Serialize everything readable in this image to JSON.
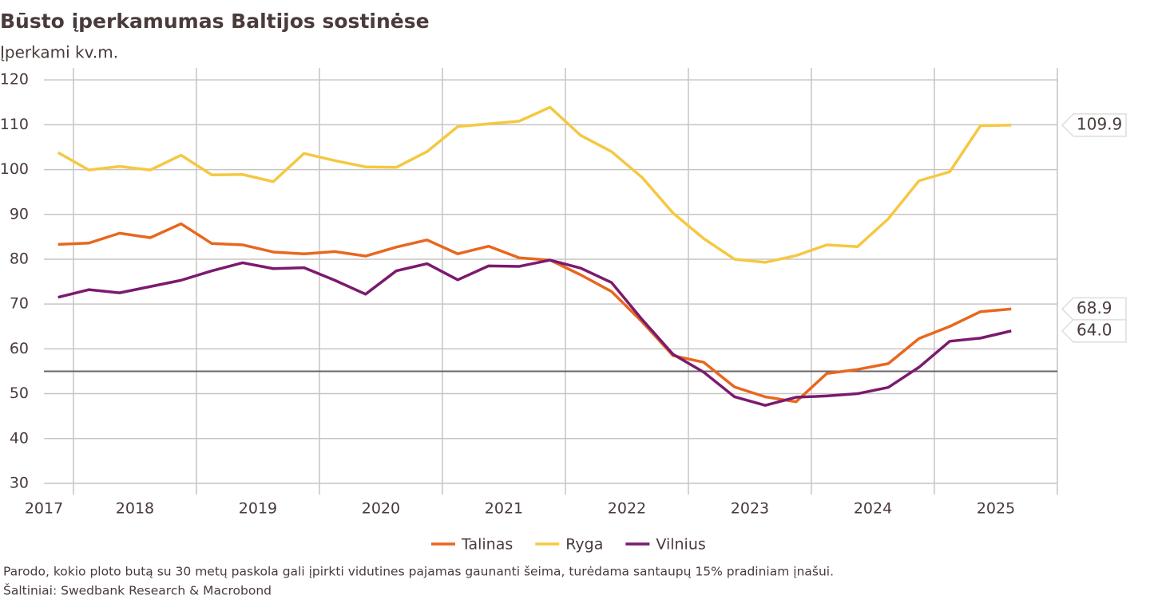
{
  "chart_data": {
    "type": "line",
    "title": "Būsto įperkamumas Baltijos sostinėse",
    "subtitle": "Įperkami kv.m.",
    "note": "Parodo, kokio ploto butą su 30 metų paskola gali įpirkti vidutines pajamas gaunanti šeima, turėdama santaupų 15% pradiniam įnašui.",
    "source": "Šaltiniai: Swedbank Research & Macrobond",
    "x": [
      2017.875,
      2018.125,
      2018.375,
      2018.625,
      2018.875,
      2019.125,
      2019.375,
      2019.625,
      2019.875,
      2020.125,
      2020.375,
      2020.625,
      2020.875,
      2021.125,
      2021.375,
      2021.625,
      2021.875,
      2022.125,
      2022.375,
      2022.625,
      2022.875,
      2023.125,
      2023.375,
      2023.625,
      2023.875,
      2024.125,
      2024.375,
      2024.625,
      2024.875,
      2025.125,
      2025.375,
      2025.625
    ],
    "series": [
      {
        "name": "Talinas",
        "color": "#e8671f",
        "values": [
          83.3,
          83.6,
          85.8,
          84.8,
          87.9,
          83.5,
          83.2,
          81.6,
          81.2,
          81.7,
          80.7,
          82.7,
          84.3,
          81.2,
          82.9,
          80.3,
          79.8,
          76.5,
          72.8,
          66,
          58.5,
          57,
          51.5,
          49.3,
          48.2,
          54.5,
          55.4,
          56.7,
          62.3,
          65,
          68.3,
          68.9
        ],
        "value_labels": [
          null,
          null,
          null,
          null,
          null,
          null,
          null,
          null,
          null,
          null,
          null,
          null,
          null,
          null,
          null,
          null,
          null,
          null,
          null,
          null,
          null,
          null,
          null,
          null,
          null,
          null,
          null,
          null,
          null,
          null,
          null,
          "68.9"
        ]
      },
      {
        "name": "Ryga",
        "color": "#f5c842",
        "values": [
          103.8,
          99.9,
          100.7,
          99.9,
          103.2,
          98.8,
          98.9,
          97.3,
          103.6,
          102,
          100.6,
          100.5,
          104,
          109.6,
          110.2,
          110.8,
          113.9,
          107.6,
          104,
          98.2,
          90.3,
          84.6,
          80,
          79.3,
          80.8,
          83.2,
          82.8,
          89,
          97.5,
          99.5,
          109.8,
          109.9
        ],
        "value_labels": [
          null,
          null,
          null,
          null,
          null,
          null,
          null,
          null,
          null,
          null,
          null,
          null,
          null,
          null,
          null,
          null,
          null,
          null,
          null,
          null,
          null,
          null,
          null,
          null,
          null,
          null,
          null,
          null,
          null,
          null,
          null,
          "109.9"
        ]
      },
      {
        "name": "Vilnius",
        "color": "#7b1a6e",
        "values": [
          71.5,
          73.2,
          72.5,
          73.9,
          75.3,
          77.4,
          79.2,
          77.9,
          78.1,
          75.3,
          72.2,
          77.4,
          79,
          75.4,
          78.5,
          78.4,
          79.8,
          78,
          74.8,
          66.5,
          58.8,
          54.8,
          49.3,
          47.4,
          49.2,
          49.5,
          50,
          51.4,
          55.9,
          61.7,
          62.4,
          64
        ],
        "value_labels": [
          null,
          null,
          null,
          null,
          null,
          null,
          null,
          null,
          null,
          null,
          null,
          null,
          null,
          null,
          null,
          null,
          null,
          null,
          null,
          null,
          null,
          null,
          null,
          null,
          null,
          null,
          null,
          null,
          null,
          null,
          null,
          "64.0"
        ]
      }
    ],
    "xlim": [
      2017.76,
      2026
    ],
    "xticks": [
      {
        "value": 2017.76,
        "label": "2017"
      },
      {
        "value": 2018.5,
        "label": "2018"
      },
      {
        "value": 2019.5,
        "label": "2019"
      },
      {
        "value": 2020.5,
        "label": "2020"
      },
      {
        "value": 2021.5,
        "label": "2021"
      },
      {
        "value": 2022.5,
        "label": "2022"
      },
      {
        "value": 2023.5,
        "label": "2023"
      },
      {
        "value": 2024.5,
        "label": "2024"
      },
      {
        "value": 2025.5,
        "label": "2025"
      }
    ],
    "xgrid": [
      2018,
      2019,
      2020,
      2021,
      2022,
      2023,
      2024,
      2025,
      2026
    ],
    "ylim": [
      27.5,
      122.7
    ],
    "yticks": [
      30,
      40,
      50,
      60,
      70,
      80,
      90,
      100,
      110,
      120
    ],
    "reference_line": 55,
    "grid": true,
    "legend": "bottom"
  }
}
